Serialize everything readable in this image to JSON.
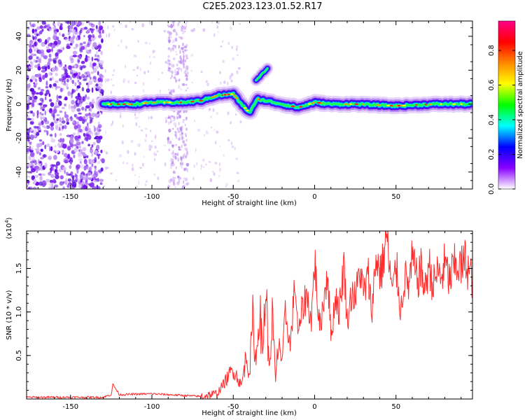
{
  "title": "C2E5.2023.123.01.52.R17",
  "chart_data": [
    {
      "type": "heatmap",
      "xlabel": "Height of straight line (km)",
      "ylabel": "Frequency (Hz)",
      "xlim": [
        -177,
        97
      ],
      "ylim": [
        -50,
        49
      ],
      "xticks": [
        -150,
        -100,
        -50,
        0,
        50
      ],
      "yticks": [
        -40,
        -20,
        0,
        20,
        40
      ],
      "colorbar": {
        "label": "Normalized spectral amplitude",
        "range": [
          0,
          0.97
        ],
        "ticks": [
          "0.0",
          "0.2",
          "0.4",
          "0.6",
          "0.8"
        ],
        "tick_values": [
          0.0,
          0.2,
          0.4,
          0.6,
          0.8
        ],
        "colormap": [
          "#ffffff",
          "#8800ff",
          "#0000ff",
          "#00ffff",
          "#00ff00",
          "#ffff00",
          "#ff8800",
          "#ff0000",
          "#ff0088"
        ]
      },
      "noise_region_x": [
        -177,
        -130
      ],
      "secondary_noise_region_x": [
        -90,
        -78
      ],
      "main_trace": {
        "x": [
          -130,
          -120,
          -110,
          -100,
          -90,
          -80,
          -70,
          -60,
          -50,
          -45,
          -40,
          -35,
          -30,
          -25,
          -20,
          -10,
          0,
          10,
          25,
          50,
          75,
          97
        ],
        "frequency": [
          0,
          0,
          0,
          1,
          1,
          1,
          2,
          5,
          6,
          0,
          -5,
          3,
          2,
          1,
          0,
          -2,
          1,
          0,
          0,
          -1,
          0,
          0
        ]
      },
      "branch_trace": {
        "x": [
          -36,
          -34,
          -32,
          -30,
          -29
        ],
        "frequency": [
          14,
          16,
          18,
          20,
          21
        ]
      }
    },
    {
      "type": "line",
      "xlabel": "Height of straight line (km)",
      "ylabel": "SNR (10 * v/v)",
      "y_multiplier": "(x10",
      "y_multiplier_exp": "4",
      "y_multiplier_close": ")",
      "xlim": [
        -177,
        97
      ],
      "ylim": [
        0,
        1.93
      ],
      "xticks": [
        -150,
        -100,
        -50,
        0,
        50
      ],
      "yticks": [
        0.5,
        1.0,
        1.5
      ],
      "ytick_labels": [
        "0.5",
        "1.0",
        "1.5"
      ],
      "color": "#ff2a2a",
      "series": [
        {
          "x": [
            -177,
            -150,
            -130,
            -125,
            -124,
            -120,
            -100,
            -80,
            -70,
            -60,
            -55,
            -50,
            -45,
            -42,
            -40,
            -38,
            -36,
            -34,
            -32,
            -30,
            -28,
            -26,
            -24,
            -22,
            -20,
            -18,
            -15,
            -12,
            -10,
            -8,
            -5,
            -2,
            0,
            3,
            5,
            8,
            10,
            13,
            15,
            18,
            20,
            23,
            25,
            28,
            30,
            33,
            35,
            38,
            40,
            42,
            44,
            46,
            48,
            50,
            53,
            55,
            58,
            60,
            63,
            65,
            68,
            70,
            73,
            75,
            78,
            80,
            83,
            85,
            88,
            90,
            93,
            95,
            97
          ],
          "y": [
            0.02,
            0.02,
            0.02,
            0.05,
            0.17,
            0.05,
            0.06,
            0.04,
            0.03,
            0.06,
            0.2,
            0.35,
            0.15,
            0.5,
            0.3,
            0.9,
            0.4,
            1.1,
            0.5,
            1.35,
            0.3,
            0.95,
            0.2,
            0.7,
            0.4,
            1.0,
            0.6,
            1.35,
            0.7,
            1.0,
            1.2,
            0.9,
            1.6,
            0.8,
            1.05,
            1.5,
            0.7,
            1.2,
            1.0,
            1.55,
            0.9,
            1.25,
            1.15,
            1.5,
            1.2,
            1.4,
            1.0,
            1.65,
            1.45,
            1.55,
            1.92,
            1.5,
            1.2,
            1.55,
            1.0,
            1.4,
            1.3,
            1.6,
            1.35,
            1.5,
            1.25,
            1.55,
            1.3,
            1.45,
            1.4,
            1.55,
            1.35,
            1.5,
            1.55,
            1.5,
            1.6,
            1.45,
            1.38
          ]
        }
      ]
    }
  ]
}
